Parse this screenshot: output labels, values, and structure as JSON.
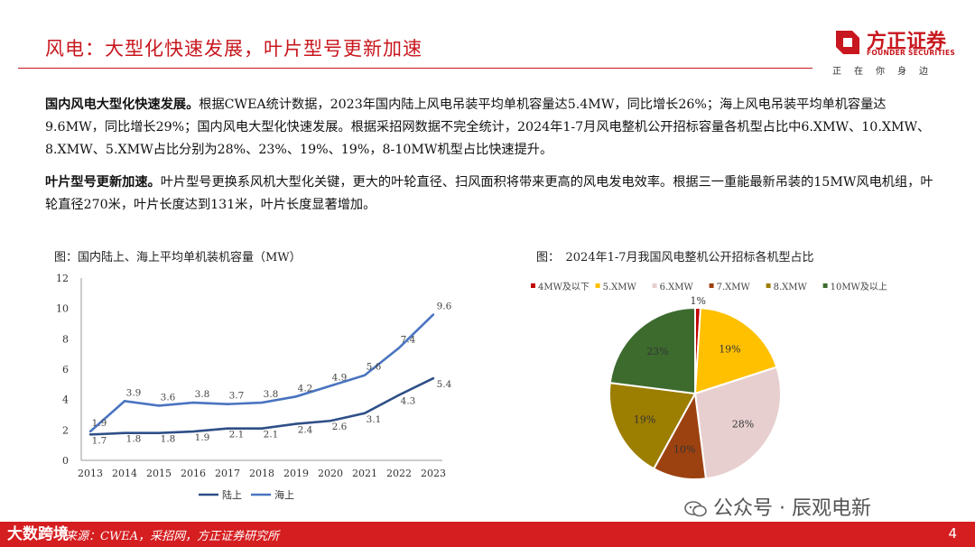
{
  "header": {
    "title": "风电：大型化快速发展，叶片型号更新加速",
    "logo_cn": "方正证券",
    "logo_en": "FOUNDER SECURITIES",
    "logo_slogan": "正在你身边"
  },
  "paragraphs": [
    {
      "lead": "国内风电大型化快速发展。",
      "body": "根据CWEA统计数据，2023年国内陆上风电吊装平均单机容量达5.4MW，同比增长26%；海上风电吊装平均单机容量达9.6MW，同比增长29%；国内风电大型化快速发展。根据采招网数据不完全统计，2024年1-7月风电整机公开招标容量各机型占比中6.XMW、10.XMW、8.XMW、5.XMW占比分别为28%、23%、19%、19%，8-10MW机型占比快速提升。"
    },
    {
      "lead": "叶片型号更新加速。",
      "body": "叶片型号更换系风机大型化关键，更大的叶轮直径、扫风面积将带来更高的风电发电效率。根据三一重能最新吊装的15MW风电机组，叶轮直径270米，叶片长度达到131米，叶片长度显著增加。"
    }
  ],
  "chart_data": [
    {
      "type": "line",
      "title": "图：国内陆上、海上平均单机装机容量（MW）",
      "x": [
        "2013",
        "2014",
        "2015",
        "2016",
        "2017",
        "2018",
        "2019",
        "2020",
        "2021",
        "2022",
        "2023"
      ],
      "ylim": [
        0,
        12
      ],
      "yticks": [
        0,
        2,
        4,
        6,
        8,
        10,
        12
      ],
      "series": [
        {
          "name": "陆上",
          "color": "#2e4f87",
          "values": [
            1.7,
            1.8,
            1.8,
            1.9,
            2.1,
            2.1,
            2.4,
            2.6,
            3.1,
            4.3,
            5.4
          ],
          "labels": [
            "1.7",
            "1.8",
            "1.8",
            "1.9",
            "2.1",
            "2.1",
            "2.4",
            "2.6",
            "3.1",
            "4.3",
            "5.4"
          ]
        },
        {
          "name": "海上",
          "color": "#4a74c0",
          "values": [
            1.9,
            3.9,
            3.6,
            3.8,
            3.7,
            3.8,
            4.2,
            4.9,
            5.6,
            7.4,
            9.6
          ],
          "labels": [
            "1.9",
            "3.9",
            "3.6",
            "3.8",
            "3.7",
            "3.8",
            "4.2",
            "4.9",
            "5.6",
            "7.4",
            "9.6"
          ]
        }
      ],
      "grid": false,
      "legend": "bottom"
    },
    {
      "type": "pie",
      "title": "图：　2024年1-7月我国风电整机公开招标各机型占比",
      "slices": [
        {
          "name": "4MW及以下",
          "value": 1,
          "label": "1%",
          "color": "#c00000"
        },
        {
          "name": "5.XMW",
          "value": 19,
          "label": "19%",
          "color": "#ffc000"
        },
        {
          "name": "6.XMW",
          "value": 28,
          "label": "28%",
          "color": "#e8cfcf"
        },
        {
          "name": "7.XMW",
          "value": 10,
          "label": "10%",
          "color": "#9c4210"
        },
        {
          "name": "8.XMW",
          "value": 19,
          "label": "19%",
          "color": "#9c7e00"
        },
        {
          "name": "10MW及以上",
          "value": 23,
          "label": "23%",
          "color": "#3d6b2e"
        }
      ],
      "legend": "top"
    }
  ],
  "footer": {
    "source": "来源：CWEA，采招网，方正证券研究所",
    "brand": "大数跨境",
    "page": "4"
  },
  "watermark": {
    "text": "公众号 · 辰观电新"
  }
}
